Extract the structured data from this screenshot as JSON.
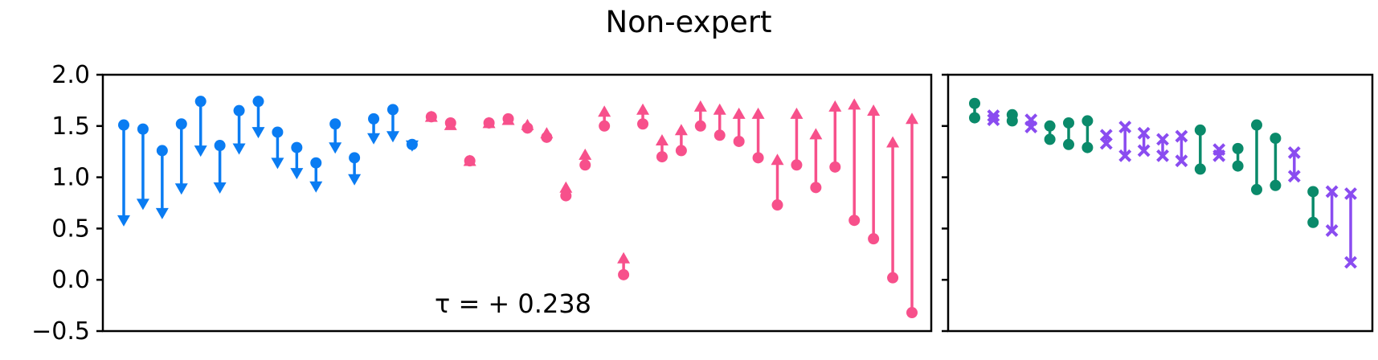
{
  "chart_data": {
    "title": "Non-expert",
    "type": "scatter",
    "ylim": [
      -0.5,
      2.0
    ],
    "yticks": [
      "2.0",
      "1.5",
      "1.0",
      "0.5",
      "0.0",
      "−0.5"
    ],
    "yticks_values": [
      2.0,
      1.5,
      1.0,
      0.5,
      0.0,
      -0.5
    ],
    "grid": false,
    "colors": {
      "down": "#0a7cf2",
      "up": "#f7508b",
      "green": "#0a8a6a",
      "purple": "#8a4cf0"
    },
    "left_panel": {
      "annotation": "τ = + 0.238",
      "pairs": [
        [
          1.51,
          0.52
        ],
        [
          1.47,
          0.68
        ],
        [
          1.26,
          0.59
        ],
        [
          1.52,
          0.83
        ],
        [
          1.74,
          1.2
        ],
        [
          1.31,
          0.84
        ],
        [
          1.65,
          1.22
        ],
        [
          1.74,
          1.38
        ],
        [
          1.44,
          1.08
        ],
        [
          1.29,
          0.98
        ],
        [
          1.14,
          0.85
        ],
        [
          1.52,
          1.23
        ],
        [
          1.19,
          0.92
        ],
        [
          1.57,
          1.32
        ],
        [
          1.66,
          1.34
        ],
        [
          1.32,
          1.25
        ],
        [
          1.59,
          1.65
        ],
        [
          1.53,
          1.57
        ],
        [
          1.16,
          1.22
        ],
        [
          1.53,
          1.59
        ],
        [
          1.57,
          1.62
        ],
        [
          1.48,
          1.57
        ],
        [
          1.39,
          1.49
        ],
        [
          0.82,
          0.96
        ],
        [
          1.12,
          1.28
        ],
        [
          1.5,
          1.7
        ],
        [
          0.05,
          0.27
        ],
        [
          1.52,
          1.72
        ],
        [
          1.2,
          1.42
        ],
        [
          1.26,
          1.52
        ],
        [
          1.5,
          1.75
        ],
        [
          1.41,
          1.72
        ],
        [
          1.35,
          1.68
        ],
        [
          1.19,
          1.68
        ],
        [
          0.73,
          1.23
        ],
        [
          1.12,
          1.68
        ],
        [
          0.9,
          1.48
        ],
        [
          1.1,
          1.75
        ],
        [
          0.58,
          1.77
        ],
        [
          0.4,
          1.71
        ],
        [
          0.02,
          1.4
        ],
        [
          -0.32,
          1.63
        ]
      ]
    },
    "right_panel": {
      "pairs": [
        {
          "series": "green",
          "values": [
            1.58,
            1.72
          ]
        },
        {
          "series": "purple",
          "values": [
            1.56,
            1.6
          ]
        },
        {
          "series": "green",
          "values": [
            1.55,
            1.61
          ]
        },
        {
          "series": "purple",
          "values": [
            1.49,
            1.56
          ]
        },
        {
          "series": "green",
          "values": [
            1.37,
            1.5
          ]
        },
        {
          "series": "green",
          "values": [
            1.32,
            1.53
          ]
        },
        {
          "series": "green",
          "values": [
            1.29,
            1.55
          ]
        },
        {
          "series": "purple",
          "values": [
            1.33,
            1.41
          ]
        },
        {
          "series": "purple",
          "values": [
            1.21,
            1.49
          ]
        },
        {
          "series": "purple",
          "values": [
            1.26,
            1.43
          ]
        },
        {
          "series": "purple",
          "values": [
            1.21,
            1.37
          ]
        },
        {
          "series": "purple",
          "values": [
            1.16,
            1.4
          ]
        },
        {
          "series": "green",
          "values": [
            1.08,
            1.46
          ]
        },
        {
          "series": "purple",
          "values": [
            1.21,
            1.27
          ]
        },
        {
          "series": "green",
          "values": [
            1.11,
            1.28
          ]
        },
        {
          "series": "green",
          "values": [
            0.88,
            1.51
          ]
        },
        {
          "series": "green",
          "values": [
            0.92,
            1.38
          ]
        },
        {
          "series": "purple",
          "values": [
            1.01,
            1.24
          ]
        },
        {
          "series": "green",
          "values": [
            0.56,
            0.86
          ]
        },
        {
          "series": "purple",
          "values": [
            0.48,
            0.86
          ]
        },
        {
          "series": "purple",
          "values": [
            0.17,
            0.84
          ]
        }
      ]
    }
  }
}
